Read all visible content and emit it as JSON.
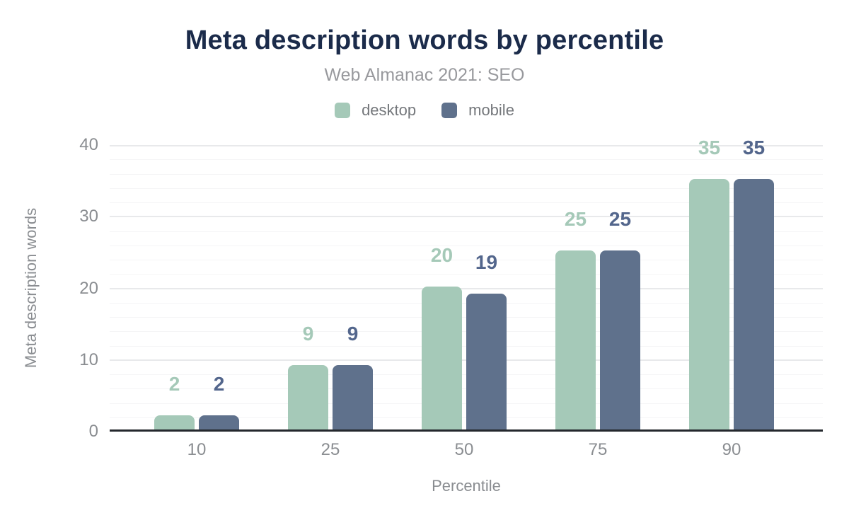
{
  "chart_data": {
    "type": "bar",
    "title": "Meta description words by percentile",
    "subtitle": "Web Almanac 2021: SEO",
    "xlabel": "Percentile",
    "ylabel": "Meta description words",
    "categories": [
      "10",
      "25",
      "50",
      "75",
      "90"
    ],
    "series": [
      {
        "name": "desktop",
        "color": "#a5c9b8",
        "label_color": "#a5c9b8",
        "values": [
          2,
          9,
          20,
          25,
          35
        ],
        "data_labels": [
          "2",
          "9",
          "20",
          "25",
          "35"
        ]
      },
      {
        "name": "mobile",
        "color": "#5f718c",
        "label_color": "#53668c",
        "values": [
          2,
          9,
          19,
          25,
          35
        ],
        "data_labels": [
          "2",
          "9",
          "19",
          "25",
          "35"
        ]
      }
    ],
    "ylim": [
      0,
      40
    ],
    "yticks": [
      0,
      10,
      20,
      30,
      40
    ],
    "grid": {
      "orientation": "horizontal",
      "minor_step": 2,
      "major_step": 10
    },
    "legend_position": "top"
  },
  "colors": {
    "title": "#1b2b4a",
    "subtitle": "#98999d",
    "tick_label": "#8a8d91",
    "axis_title": "#8a8d91",
    "legend_label": "#74777b",
    "axis_line": "#24282d",
    "grid_minor": "#f5f5f6",
    "grid_major": "#e8e9eb",
    "background": "#ffffff"
  }
}
